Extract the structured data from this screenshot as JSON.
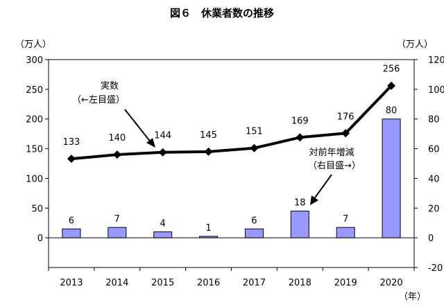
{
  "chart_data": {
    "title": "図６　休業者数の推移",
    "type": "bar+line",
    "categories": [
      "2013",
      "2014",
      "2015",
      "2016",
      "2017",
      "2018",
      "2019",
      "2020"
    ],
    "series": [
      {
        "name": "実数",
        "type": "line",
        "axis": "left",
        "values": [
          133,
          140,
          144,
          145,
          151,
          169,
          176,
          256
        ],
        "color": "#000000"
      },
      {
        "name": "対前年増減",
        "type": "bar",
        "axis": "right",
        "values": [
          6,
          7,
          4,
          1,
          6,
          18,
          7,
          80
        ],
        "color": "#9999ff"
      }
    ],
    "left_axis": {
      "unit": "（万人）",
      "ticks": [
        "300",
        "250",
        "200",
        "150",
        "100",
        "50",
        "0"
      ],
      "ylim": [
        -50,
        300
      ]
    },
    "right_axis": {
      "unit": "（万人）",
      "ticks": [
        "120",
        "100",
        "80",
        "60",
        "40",
        "20",
        "0",
        "-20"
      ],
      "ylim": [
        -20,
        120
      ]
    },
    "x_unit": "（年）",
    "annotations": {
      "line_label_1": "実数",
      "line_label_2": "（←左目盛）",
      "bar_label_1": "対前年増減",
      "bar_label_2": "（右目盛→）"
    },
    "grid": false
  }
}
